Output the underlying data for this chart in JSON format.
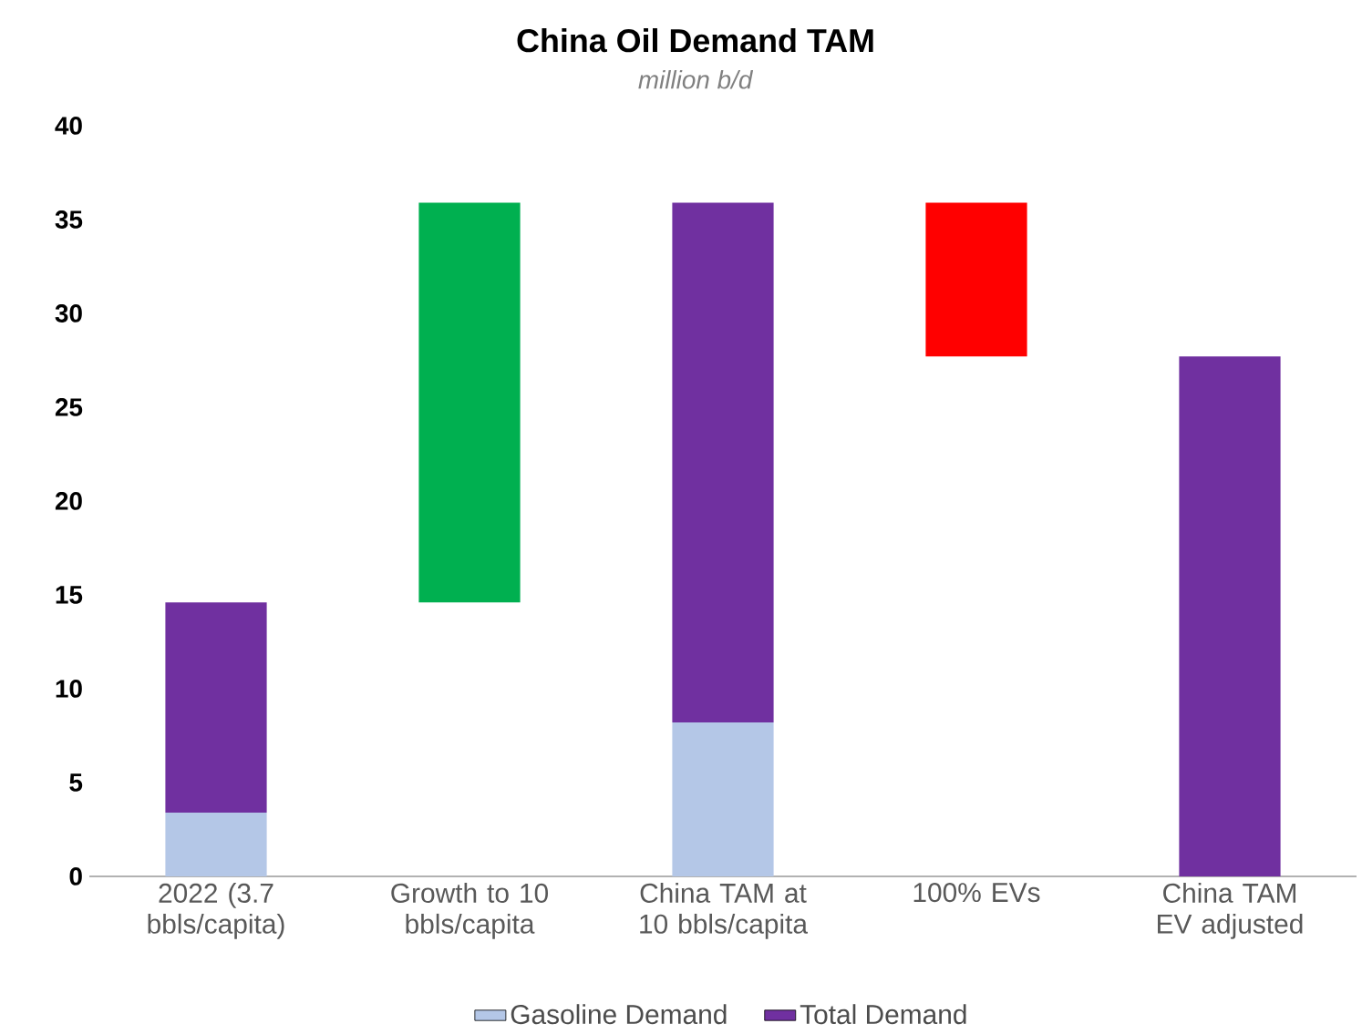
{
  "chart_data": {
    "type": "bar",
    "title": "China Oil Demand TAM",
    "subtitle": "*million b/d*",
    "stacked": true,
    "legend": "bottom",
    "categories": [
      "2022 (3.7 bbls/capita)",
      "Growth to 10 bbls/capita",
      "China TAM at 10 bbls/capita",
      "100% EVs",
      "China TAM EV adjusted"
    ],
    "ylim": [
      0,
      40
    ],
    "yticks": [
      0,
      5,
      10,
      15,
      20,
      25,
      30,
      35,
      40
    ],
    "series": [
      {
        "name": "Gasoline Demand",
        "color": "#b4c7e7",
        "values": [
          3.4,
          null,
          8.2,
          null,
          null
        ]
      },
      {
        "name": "Total Demand",
        "color": "#7030a0",
        "values": [
          11.2,
          null,
          27.7,
          null,
          27.7
        ]
      },
      {
        "colors": [
          null,
          "#00b050",
          null,
          "#ff0000",
          null
        ],
        "values": [
          null,
          21.3,
          null,
          8.2,
          null
        ],
        "base": [
          null,
          14.6,
          null,
          27.7,
          null
        ]
      }
    ]
  }
}
